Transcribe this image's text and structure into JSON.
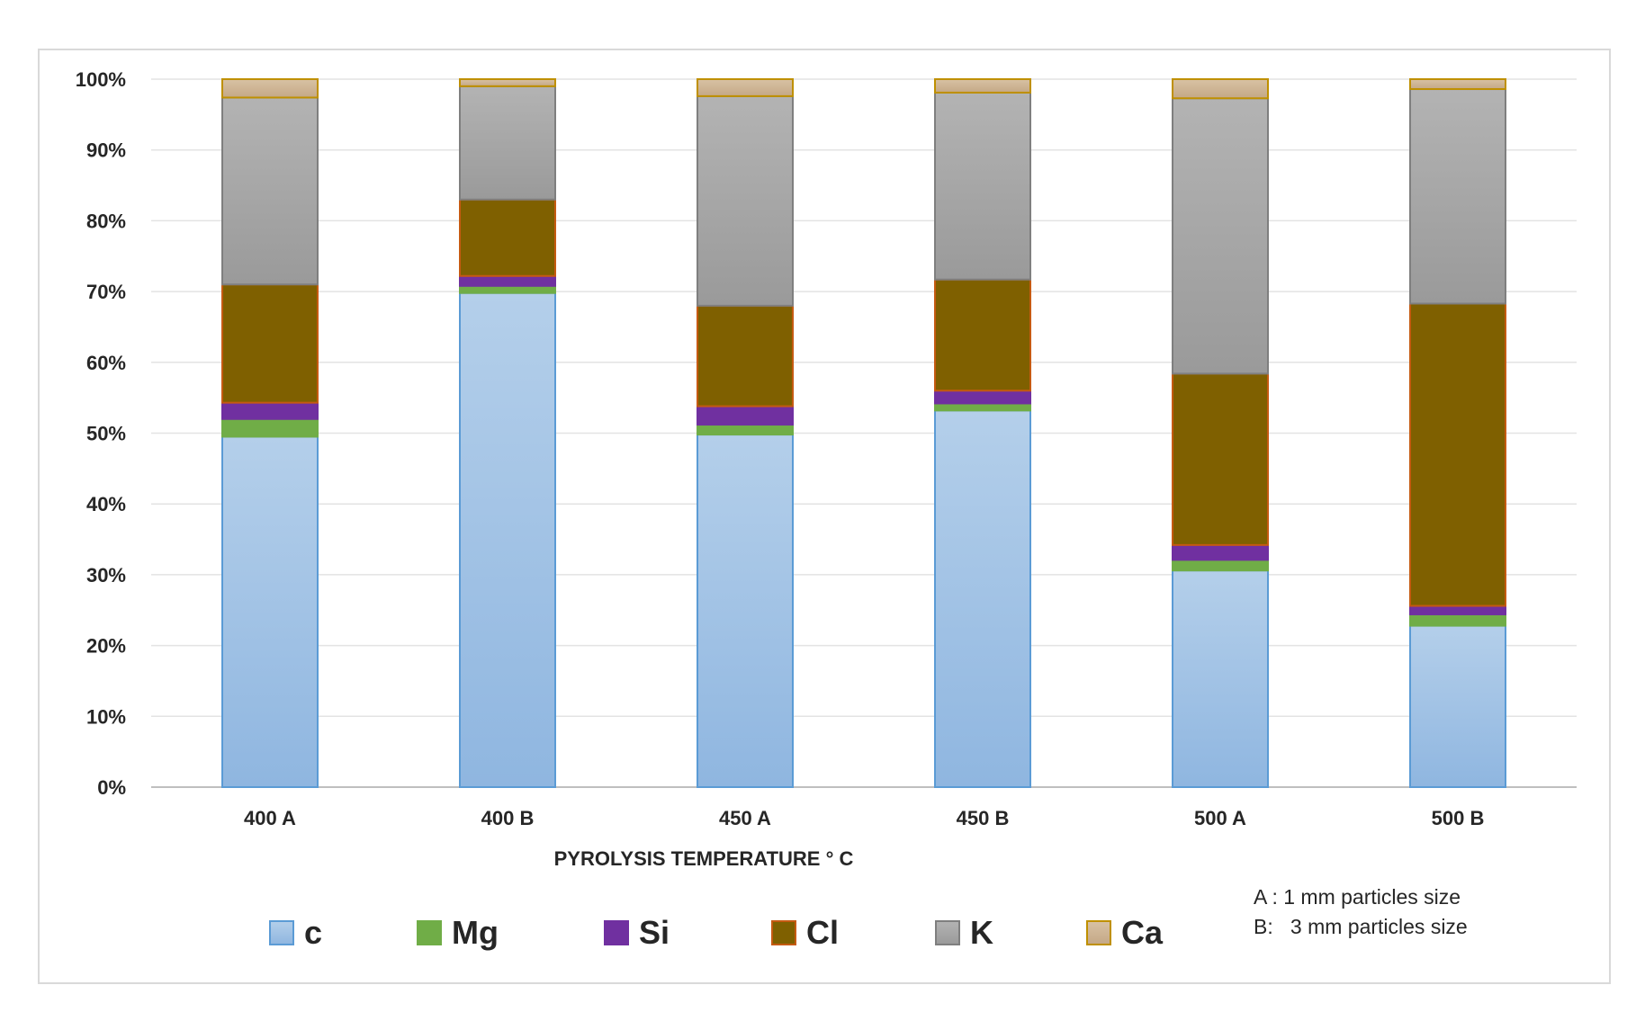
{
  "chart_data": {
    "type": "bar",
    "stacked": true,
    "title": "",
    "xlabel": "PYROLYSIS TEMPERATURE ° C",
    "ylabel": "",
    "ylim": [
      0,
      100
    ],
    "yticks": [
      "0%",
      "10%",
      "20%",
      "30%",
      "40%",
      "50%",
      "60%",
      "70%",
      "80%",
      "90%",
      "100%"
    ],
    "categories": [
      "400 A",
      "400 B",
      "450 A",
      "450 B",
      "500 A",
      "500 B"
    ],
    "series": [
      {
        "name": "c",
        "color": "#9dc3e6",
        "edge": "#5b9bd5",
        "values": [
          49.5,
          69.8,
          49.8,
          53.2,
          30.6,
          22.8
        ]
      },
      {
        "name": "Mg",
        "color": "#70ad47",
        "edge": "#70ad47",
        "values": [
          2.5,
          1.0,
          1.4,
          1.0,
          1.5,
          1.6
        ]
      },
      {
        "name": "Si",
        "color": "#7030a0",
        "edge": "#7030a0",
        "values": [
          2.3,
          1.4,
          2.6,
          1.8,
          2.1,
          1.2
        ]
      },
      {
        "name": "Cl",
        "color": "#7f6000",
        "edge": "#c55a11",
        "values": [
          16.7,
          10.8,
          14.2,
          15.7,
          24.2,
          42.7
        ]
      },
      {
        "name": "K",
        "color": "#a5a5a5",
        "edge": "#7f7f7f",
        "values": [
          26.4,
          16.0,
          29.6,
          26.4,
          38.9,
          30.3
        ]
      },
      {
        "name": "Ca",
        "color": "#cdb28f",
        "edge": "#bf9000",
        "values": [
          2.6,
          1.0,
          2.4,
          1.9,
          2.7,
          1.4
        ]
      }
    ],
    "legend": [
      "c",
      "Mg",
      "Si",
      "Cl",
      "K",
      "Ca"
    ],
    "notes": [
      "A : 1 mm particles size",
      "B:   3 mm particles size"
    ],
    "grid": true,
    "legend_position": "bottom"
  }
}
